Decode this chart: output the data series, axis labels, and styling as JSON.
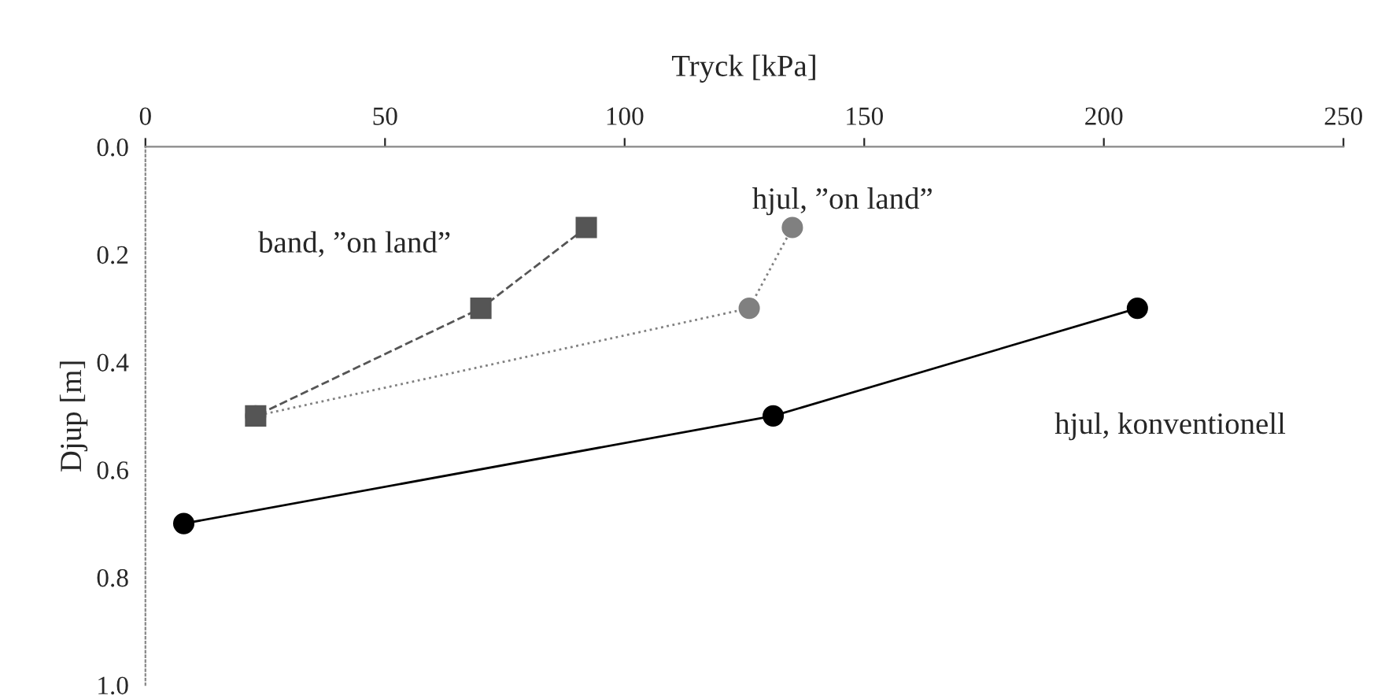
{
  "chart_data": {
    "type": "line",
    "xlabel": "Tryck [kPa]",
    "ylabel": "Djup [m]",
    "xlim": [
      0,
      250
    ],
    "xticks": [
      0,
      50,
      100,
      150,
      200,
      250
    ],
    "ylim": [
      1.0,
      0.0
    ],
    "yticks": [
      {
        "value": 0.0,
        "label": "0.0"
      },
      0.2,
      0.4,
      0.6,
      0.8,
      {
        "value": 1.0,
        "label": "1.0"
      }
    ],
    "grid": false,
    "legend": false,
    "series": [
      {
        "name": "band, ”on land”",
        "color": "#555555",
        "marker": "square",
        "line_style": "dashed",
        "x": [
          92,
          70,
          23
        ],
        "values": [
          0.15,
          0.3,
          0.5
        ]
      },
      {
        "name": "hjul, ”on land”",
        "color": "#808080",
        "marker": "circle",
        "line_style": "dotted",
        "x": [
          135,
          126,
          23
        ],
        "values": [
          0.15,
          0.3,
          0.5
        ]
      },
      {
        "name": "hjul, konventionell",
        "color": "#000000",
        "marker": "circle",
        "line_style": "solid",
        "x": [
          207,
          131,
          8
        ],
        "values": [
          0.3,
          0.5,
          0.7
        ]
      }
    ]
  }
}
